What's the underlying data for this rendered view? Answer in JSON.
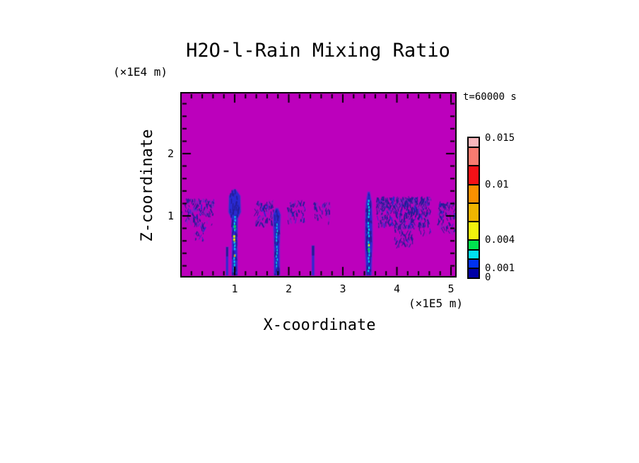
{
  "chart_data": {
    "type": "filled_contour_heatmap",
    "title": "H2O-l-Rain Mixing Ratio",
    "time_label": "t=60000 s",
    "x_axis": {
      "label": "X-coordinate",
      "unit_label": "(×1E5 m)",
      "major_ticks": [
        1,
        2,
        3,
        4,
        5
      ],
      "minor_tick_step": 0.2,
      "range": [
        0,
        5.08
      ]
    },
    "z_axis": {
      "label": "Z-coordinate",
      "unit_label": "(×1E4 m)",
      "major_ticks": [
        1,
        2
      ],
      "minor_tick_step": 0.2,
      "range": [
        0,
        3
      ]
    },
    "colorbar": {
      "levels": [
        0,
        0.001,
        0.002,
        0.003,
        0.004,
        0.006,
        0.008,
        0.01,
        0.012,
        0.014,
        0.015
      ],
      "colors_bottom_to_top": [
        "#0000a6",
        "#0032f0",
        "#00dff2",
        "#00e24f",
        "#f2f20d",
        "#f0b400",
        "#fb9000",
        "#f51117",
        "#f97b70",
        "#f9b7bc"
      ],
      "labels": [
        {
          "text": "0.015",
          "value": 0.015
        },
        {
          "text": "0.01",
          "value": 0.01
        },
        {
          "text": "0.004",
          "value": 0.004
        },
        {
          "text": "0.001",
          "value": 0.001
        },
        {
          "text": "0",
          "value": 0
        }
      ]
    },
    "colors": {
      "zero_background": "#bc00bc",
      "field_blue": "#2a2ad2",
      "field_navy": "#221d96",
      "fringe_purple": "#8a1cc2",
      "core_cyan": "#00d8ee",
      "core_green": "#00d855",
      "core_yellow": "#e8e800",
      "core_orange": "#fb9000",
      "frame": "#000000"
    },
    "features": {
      "patches": [
        {
          "x0": 0.0,
          "x1": 0.05,
          "z0": 0.95,
          "z1": 1.1,
          "density": 0.35
        },
        {
          "x0": 0.08,
          "x1": 0.62,
          "z0": 0.85,
          "z1": 1.25,
          "density": 0.55
        },
        {
          "x0": 0.25,
          "x1": 0.45,
          "z0": 0.6,
          "z1": 0.86,
          "density": 0.4
        },
        {
          "x0": 1.38,
          "x1": 1.72,
          "z0": 0.85,
          "z1": 1.22,
          "density": 0.55
        },
        {
          "x0": 1.98,
          "x1": 2.3,
          "z0": 0.88,
          "z1": 1.22,
          "density": 0.45
        },
        {
          "x0": 2.47,
          "x1": 2.77,
          "z0": 0.88,
          "z1": 1.2,
          "density": 0.45
        },
        {
          "x0": 3.62,
          "x1": 4.62,
          "z0": 0.82,
          "z1": 1.28,
          "density": 0.85
        },
        {
          "x0": 3.95,
          "x1": 4.3,
          "z0": 0.5,
          "z1": 0.84,
          "density": 0.5
        },
        {
          "x0": 4.4,
          "x1": 4.62,
          "z0": 0.7,
          "z1": 0.86,
          "density": 0.35
        },
        {
          "x0": 4.76,
          "x1": 5.08,
          "z0": 0.73,
          "z1": 1.2,
          "density": 0.5
        }
      ],
      "columns": [
        {
          "x": 0.86,
          "z0": 0,
          "z1": 0.5,
          "w": 0.035
        },
        {
          "x": 2.45,
          "z0": 0,
          "z1": 0.52,
          "w": 0.04
        }
      ],
      "shafts": [
        {
          "x": 1.0,
          "profile": [
            [
              1.42,
              0.02
            ],
            [
              1.32,
              0.1
            ],
            [
              1.06,
              0.11
            ],
            [
              0.96,
              0.055
            ],
            [
              0.5,
              0.045
            ],
            [
              0,
              0.05
            ]
          ],
          "cores": [
            {
              "color": "cyan",
              "z0": 0.08,
              "z1": 1.0,
              "w": 2
            },
            {
              "color": "green",
              "z0": 0.78,
              "z1": 0.85,
              "w": 3
            },
            {
              "color": "yellow",
              "z0": 0.58,
              "z1": 0.74,
              "w": 3
            },
            {
              "color": "orange",
              "z0": 0.34,
              "z1": 0.38,
              "w": 2
            }
          ]
        },
        {
          "x": 1.78,
          "profile": [
            [
              1.12,
              0.02
            ],
            [
              1.02,
              0.065
            ],
            [
              0.9,
              0.06
            ],
            [
              0.5,
              0.045
            ],
            [
              0,
              0.05
            ]
          ],
          "cores": [
            {
              "color": "cyan",
              "z0": 0.05,
              "z1": 0.88,
              "w": 1.5
            }
          ]
        },
        {
          "x": 3.48,
          "profile": [
            [
              1.38,
              0.015
            ],
            [
              1.2,
              0.05
            ],
            [
              0.95,
              0.06
            ],
            [
              0.55,
              0.065
            ],
            [
              0.25,
              0.05
            ],
            [
              0,
              0.045
            ]
          ],
          "cores": [
            {
              "color": "cyan",
              "z0": 0.1,
              "z1": 1.26,
              "w": 2
            },
            {
              "color": "green",
              "z0": 0.42,
              "z1": 0.48,
              "w": 3
            },
            {
              "color": "yellow",
              "z0": 0.5,
              "z1": 0.55,
              "w": 2
            }
          ]
        }
      ]
    }
  }
}
